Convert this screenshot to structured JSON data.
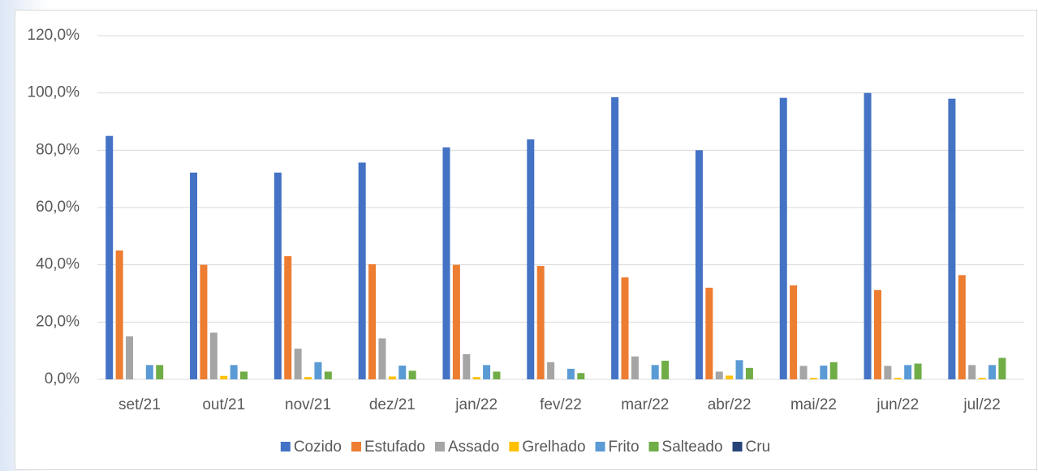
{
  "chart_data": {
    "type": "bar",
    "categories": [
      "set/21",
      "out/21",
      "nov/21",
      "dez/21",
      "jan/22",
      "fev/22",
      "mar/22",
      "abr/22",
      "mai/22",
      "jun/22",
      "jul/22"
    ],
    "series": [
      {
        "name": "Cozido",
        "color": "#4472c4",
        "values": [
          85,
          72.2,
          72.2,
          75.7,
          81,
          83.8,
          98.5,
          80,
          98.3,
          100,
          98
        ]
      },
      {
        "name": "Estufado",
        "color": "#ed7d31",
        "values": [
          45,
          40,
          43,
          40.2,
          40,
          39.6,
          35.6,
          32,
          32.8,
          31.2,
          36.4
        ]
      },
      {
        "name": "Assado",
        "color": "#a5a5a5",
        "values": [
          15,
          16.3,
          10.7,
          14.3,
          8.8,
          6,
          8,
          2.7,
          4.7,
          4.7,
          5
        ]
      },
      {
        "name": "Grelhado",
        "color": "#ffc000",
        "values": [
          0,
          1.2,
          0.8,
          1,
          0.8,
          0,
          0,
          1.3,
          0.5,
          0.5,
          0.5
        ]
      },
      {
        "name": "Frito",
        "color": "#5b9bd5",
        "values": [
          5,
          5,
          6,
          4.8,
          5,
          3.7,
          5,
          6.7,
          4.8,
          5,
          5
        ]
      },
      {
        "name": "Salteado",
        "color": "#70ad47",
        "values": [
          5,
          2.7,
          2.7,
          3,
          2.7,
          2.2,
          6.5,
          4,
          6,
          5.5,
          7.5
        ]
      },
      {
        "name": "Cru",
        "color": "#264478",
        "values": [
          0,
          0,
          0,
          0,
          0,
          0,
          0,
          0,
          0,
          0,
          0
        ]
      }
    ],
    "ylim": [
      0,
      120
    ],
    "yticks": [
      {
        "value": 0,
        "label": "0,0%"
      },
      {
        "value": 20,
        "label": "20,0%"
      },
      {
        "value": 40,
        "label": "40,0%"
      },
      {
        "value": 60,
        "label": "60,0%"
      },
      {
        "value": 80,
        "label": "80,0%"
      },
      {
        "value": 100,
        "label": "100,0%"
      },
      {
        "value": 120,
        "label": "120,0%"
      }
    ],
    "grid": true,
    "legend": "bottom"
  }
}
